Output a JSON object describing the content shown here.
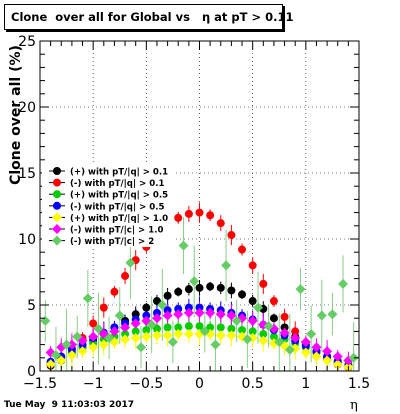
{
  "chart_data": {
    "type": "scatter",
    "title": "Clone  over all for Global vs   η at pT > 0.11",
    "xlabel": "η",
    "ylabel": "Clone  over all (%)",
    "xlim": [
      -1.5,
      1.5
    ],
    "ylim": [
      0,
      25
    ],
    "x_ticks": [
      "−1.5",
      "−1",
      "−0.5",
      "0",
      "0.5",
      "1",
      "1.5"
    ],
    "y_ticks": [
      "0",
      "5",
      "10",
      "15",
      "20",
      "25"
    ],
    "grid": true,
    "legend_position": "center-left",
    "series": [
      {
        "name": "(+) with pT/|q| > 0.1",
        "color": "#000000",
        "marker": "circle",
        "x": [
          -1.4,
          -1.3,
          -1.2,
          -1.1,
          -1.0,
          -0.9,
          -0.8,
          -0.7,
          -0.6,
          -0.5,
          -0.4,
          -0.3,
          -0.2,
          -0.1,
          0.0,
          0.1,
          0.2,
          0.3,
          0.4,
          0.5,
          0.6,
          0.7,
          0.8,
          0.9,
          1.0,
          1.1,
          1.2,
          1.3,
          1.4
        ],
        "y": [
          0.4,
          0.8,
          1.3,
          1.8,
          2.3,
          2.8,
          3.3,
          3.8,
          4.3,
          4.8,
          5.3,
          5.7,
          6.0,
          6.2,
          6.3,
          6.4,
          6.3,
          6.1,
          5.8,
          5.3,
          4.7,
          4.0,
          3.3,
          2.6,
          2.0,
          1.5,
          1.0,
          0.6,
          0.3
        ]
      },
      {
        "name": "(-) with pT/|q| > 0.1",
        "color": "#ff0000",
        "marker": "circle",
        "x": [
          -1.4,
          -1.3,
          -1.2,
          -1.1,
          -1.0,
          -0.9,
          -0.8,
          -0.7,
          -0.6,
          -0.5,
          -0.4,
          -0.3,
          -0.2,
          -0.1,
          0.0,
          0.1,
          0.2,
          0.3,
          0.4,
          0.5,
          0.6,
          0.7,
          0.8,
          0.9,
          1.0,
          1.1,
          1.2,
          1.3,
          1.4
        ],
        "y": [
          0.5,
          1.0,
          1.7,
          2.5,
          3.6,
          4.8,
          6.0,
          7.2,
          8.4,
          9.4,
          10.4,
          11.0,
          11.6,
          11.9,
          12.0,
          11.8,
          11.2,
          10.3,
          9.2,
          8.0,
          6.6,
          5.3,
          4.1,
          3.0,
          2.1,
          1.4,
          0.9,
          0.5,
          0.3
        ]
      },
      {
        "name": "(+) with pT/|q| > 0.5",
        "color": "#00cc00",
        "marker": "circle",
        "x": [
          -1.4,
          -1.3,
          -1.2,
          -1.1,
          -1.0,
          -0.9,
          -0.8,
          -0.7,
          -0.6,
          -0.5,
          -0.4,
          -0.3,
          -0.2,
          -0.1,
          0.0,
          0.1,
          0.2,
          0.3,
          0.4,
          0.5,
          0.6,
          0.7,
          0.8,
          0.9,
          1.0,
          1.1,
          1.2,
          1.3,
          1.4
        ],
        "y": [
          0.6,
          1.0,
          1.4,
          1.8,
          2.1,
          2.4,
          2.6,
          2.8,
          3.0,
          3.1,
          3.2,
          3.3,
          3.3,
          3.4,
          3.4,
          3.3,
          3.3,
          3.2,
          3.1,
          3.0,
          2.8,
          2.6,
          2.4,
          2.1,
          1.8,
          1.5,
          1.1,
          0.8,
          0.5
        ]
      },
      {
        "name": "(-) with pT/|q| > 0.5",
        "color": "#0000ff",
        "marker": "circle",
        "x": [
          -1.4,
          -1.3,
          -1.2,
          -1.1,
          -1.0,
          -0.9,
          -0.8,
          -0.7,
          -0.6,
          -0.5,
          -0.4,
          -0.3,
          -0.2,
          -0.1,
          0.0,
          0.1,
          0.2,
          0.3,
          0.4,
          0.5,
          0.6,
          0.7,
          0.8,
          0.9,
          1.0,
          1.1,
          1.2,
          1.3,
          1.4
        ],
        "y": [
          0.7,
          1.1,
          1.6,
          2.0,
          2.5,
          2.9,
          3.3,
          3.6,
          3.9,
          4.2,
          4.4,
          4.6,
          4.7,
          4.8,
          4.8,
          4.7,
          4.6,
          4.4,
          4.2,
          3.9,
          3.5,
          3.1,
          2.7,
          2.3,
          1.9,
          1.5,
          1.1,
          0.7,
          0.4
        ]
      },
      {
        "name": "(+) with pT/|q| > 1.0",
        "color": "#ffff00",
        "marker": "diamond",
        "x": [
          -1.4,
          -1.3,
          -1.2,
          -1.1,
          -1.0,
          -0.9,
          -0.8,
          -0.7,
          -0.6,
          -0.5,
          -0.4,
          -0.3,
          -0.2,
          -0.1,
          0.0,
          0.1,
          0.2,
          0.3,
          0.4,
          0.5,
          0.6,
          0.7,
          0.8,
          0.9,
          1.0,
          1.1,
          1.2,
          1.3,
          1.4
        ],
        "y": [
          0.5,
          0.8,
          1.2,
          1.5,
          1.8,
          2.0,
          2.2,
          2.4,
          2.5,
          2.6,
          2.7,
          2.7,
          2.8,
          2.8,
          2.8,
          2.8,
          2.7,
          2.7,
          2.6,
          2.5,
          2.3,
          2.1,
          1.9,
          1.7,
          1.4,
          1.1,
          0.8,
          0.5,
          0.3
        ]
      },
      {
        "name": "(-) with pT/|c| > 1.0",
        "color": "#ff00ff",
        "marker": "diamond",
        "x": [
          -1.4,
          -1.3,
          -1.2,
          -1.1,
          -1.0,
          -0.9,
          -0.8,
          -0.7,
          -0.6,
          -0.5,
          -0.4,
          -0.3,
          -0.2,
          -0.1,
          0.0,
          0.1,
          0.2,
          0.3,
          0.4,
          0.5,
          0.6,
          0.7,
          0.8,
          0.9,
          1.0,
          1.1,
          1.2,
          1.3,
          1.4
        ],
        "y": [
          1.4,
          1.8,
          2.0,
          2.3,
          2.6,
          2.8,
          3.0,
          3.3,
          3.6,
          3.8,
          4.0,
          4.2,
          4.3,
          4.4,
          4.4,
          4.4,
          4.3,
          4.2,
          4.0,
          3.8,
          3.5,
          3.2,
          2.9,
          2.5,
          2.2,
          1.8,
          1.5,
          1.1,
          0.8
        ]
      },
      {
        "name": "(-) with pT/|c| > 2",
        "color": "#66cc66",
        "marker": "diamond",
        "x": [
          -1.45,
          -1.35,
          -1.25,
          -1.15,
          -1.05,
          -0.95,
          -0.85,
          -0.75,
          -0.65,
          -0.55,
          -0.45,
          -0.35,
          -0.25,
          -0.15,
          -0.05,
          0.05,
          0.15,
          0.25,
          0.35,
          0.45,
          0.55,
          0.65,
          0.75,
          0.85,
          0.95,
          1.05,
          1.15,
          1.25,
          1.35,
          1.45
        ],
        "y": [
          3.8,
          1.2,
          2.0,
          2.6,
          5.5,
          3.2,
          2.5,
          4.2,
          8.2,
          1.8,
          3.5,
          5.0,
          2.2,
          9.5,
          6.8,
          3.0,
          2.0,
          8.0,
          3.8,
          2.4,
          4.8,
          3.4,
          2.2,
          1.6,
          6.2,
          2.8,
          4.2,
          4.3,
          6.6,
          1.0
        ]
      }
    ]
  },
  "footer": {
    "timestamp": "Tue May  9 11:03:03 2017"
  }
}
